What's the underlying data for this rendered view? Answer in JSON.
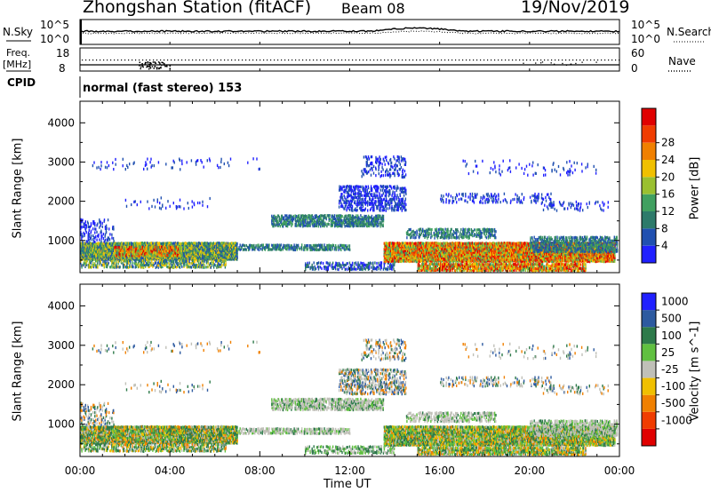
{
  "header": {
    "title": "Zhongshan Station (fitACF)",
    "beam": "Beam 08",
    "date": "19/Nov/2019"
  },
  "noise_panel": {
    "left_label": "N.Sky",
    "right_label": "N.Search",
    "left_ticks": [
      "10^5",
      "10^0"
    ],
    "right_ticks": [
      "10^5",
      "10^0"
    ]
  },
  "freq_panel": {
    "left_label_1": "Freq.",
    "left_label_2": "[MHz]",
    "left_ticks": [
      "18",
      "8"
    ],
    "right_label": "Nave",
    "right_ticks": [
      "60",
      "0"
    ],
    "cpid_label": "CPID",
    "cpid_value": "normal (fast stereo) 153"
  },
  "colors": {
    "power_scale": [
      "#2020ff",
      "#2050b0",
      "#2d7a6a",
      "#40a060",
      "#9ac030",
      "#f0c000",
      "#f08000",
      "#f03c00",
      "#e00000"
    ],
    "velocity_scale": [
      "#e00000",
      "#f03c00",
      "#f08000",
      "#f0c000",
      "#c0c0b8",
      "#60c040",
      "#2d7a4a",
      "#2d5aa0",
      "#2020ff"
    ]
  },
  "chart_data": [
    {
      "type": "heatmap",
      "panel": "power",
      "ylabel": "Slant Range [km]",
      "yticks": [
        1000,
        2000,
        3000,
        4000
      ],
      "ylim": [
        180,
        4550
      ],
      "xlim": [
        0,
        24
      ],
      "xticks": [
        "00:00",
        "04:00",
        "08:00",
        "12:00",
        "16:00",
        "20:00",
        "00:00"
      ],
      "colorbar_label": "Power [dB]",
      "colorbar_ticks": [
        "4",
        "8",
        "12",
        "16",
        "20",
        "24",
        "28"
      ],
      "colorbar_range": [
        0,
        32
      ]
    },
    {
      "type": "heatmap",
      "panel": "velocity",
      "ylabel": "Slant Range [km]",
      "yticks": [
        1000,
        2000,
        3000,
        4000
      ],
      "ylim": [
        180,
        4550
      ],
      "xlim": [
        0,
        24
      ],
      "xticks": [
        "00:00",
        "04:00",
        "08:00",
        "12:00",
        "16:00",
        "20:00",
        "00:00"
      ],
      "xlabel": "Time UT",
      "colorbar_label": "Velocity [m s^-1]",
      "colorbar_ticks": [
        "1000",
        "500",
        "100",
        "25",
        "-25",
        "-100",
        "-500",
        "-1000"
      ]
    }
  ]
}
